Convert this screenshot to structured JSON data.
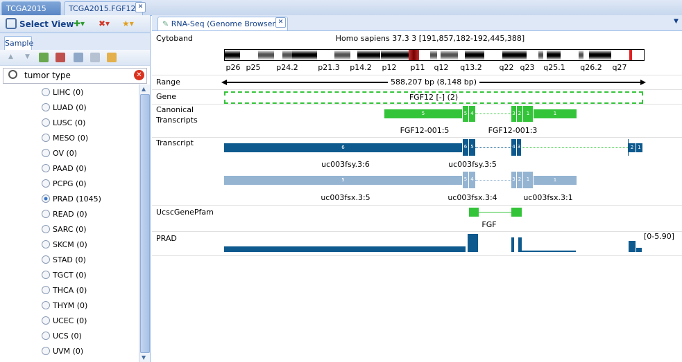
{
  "top_tabs": {
    "tab1": "TCGA2015",
    "tab2": "TCGA2015.FGF12",
    "close_glyph": "✕"
  },
  "left_toolbar": {
    "select_view": "Select View"
  },
  "sample_tab": "Sample",
  "search": {
    "value": "tumor type",
    "clear_glyph": "✕"
  },
  "samples": [
    {
      "label": "LIHC (0)",
      "selected": false
    },
    {
      "label": "LUAD (0)",
      "selected": false
    },
    {
      "label": "LUSC (0)",
      "selected": false
    },
    {
      "label": "MESO (0)",
      "selected": false
    },
    {
      "label": "OV (0)",
      "selected": false
    },
    {
      "label": "PAAD (0)",
      "selected": false
    },
    {
      "label": "PCPG (0)",
      "selected": false
    },
    {
      "label": "PRAD (1045)",
      "selected": true
    },
    {
      "label": "READ (0)",
      "selected": false
    },
    {
      "label": "SARC (0)",
      "selected": false
    },
    {
      "label": "SKCM (0)",
      "selected": false
    },
    {
      "label": "STAD (0)",
      "selected": false
    },
    {
      "label": "TGCT (0)",
      "selected": false
    },
    {
      "label": "THCA (0)",
      "selected": false
    },
    {
      "label": "THYM (0)",
      "selected": false
    },
    {
      "label": "UCEC (0)",
      "selected": false
    },
    {
      "label": "UCS (0)",
      "selected": false
    },
    {
      "label": "UVM (0)",
      "selected": false
    }
  ],
  "browser": {
    "tab_title": "RNA-Seq (Genome Browser)",
    "close_glyph": "✕",
    "tracks": {
      "cytoband": "Cytoband",
      "range": "Range",
      "gene": "Gene",
      "canonical_line1": "Canonical",
      "canonical_line2": "Transcripts",
      "transcript": "Transcript",
      "pfam": "UcscGenePfam",
      "prad": "PRAD"
    },
    "genome": "Homo sapiens 37.3 3 [191,857,182-192,445,388]",
    "bands": [
      "p26",
      "p25",
      "p24.2",
      "p21.3",
      "p14.2",
      "p12",
      "p11",
      "q12",
      "q13.2",
      "q22",
      "q23",
      "q25.1",
      "q26.2",
      "q27"
    ],
    "range_text": "588,207 bp (8,148 bp)",
    "gene_text": "FGF12 [-] (2)",
    "canonical_labels": [
      "FGF12-001:5",
      "FGF12-001:3"
    ],
    "transcript_labels": [
      "uc003fsy.3:6",
      "uc003fsy.3:5",
      "uc003fsx.3:5",
      "uc003fsx.3:4",
      "uc003fsx.3:1"
    ],
    "pfam_label": "FGF",
    "prad_range": "[0-5.90]",
    "exons": {
      "canonical_a": [
        "5",
        "5",
        "4"
      ],
      "canonical_b": [
        "3",
        "2",
        "1",
        "1"
      ],
      "tx_a": [
        "6",
        "6",
        "5"
      ],
      "tx_b": [
        "4",
        "3",
        "2",
        "1"
      ],
      "tx_c": [
        "5",
        "5",
        "4"
      ],
      "tx_d": [
        "3",
        "2",
        "1",
        "1"
      ]
    },
    "colors": {
      "green": "#34c43a",
      "navy": "#0e5a8e",
      "light": "#94b4d2",
      "red": "#e02020"
    }
  }
}
